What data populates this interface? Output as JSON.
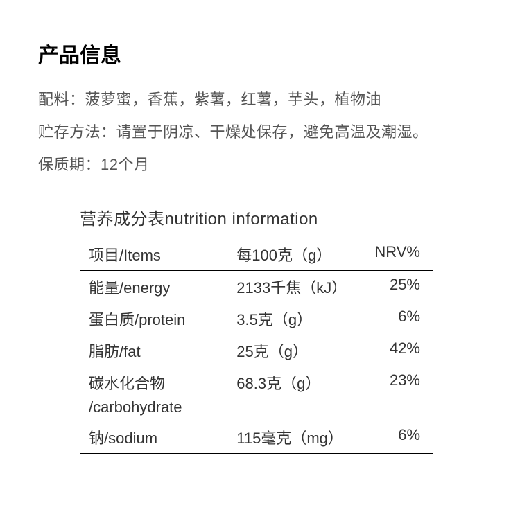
{
  "title": "产品信息",
  "info": {
    "ingredients": "配料：菠萝蜜，香蕉，紫薯，红薯，芋头，植物油",
    "storage": "贮存方法：请置于阴凉、干燥处保存，避免高温及潮湿。",
    "shelf_life": "保质期：12个月"
  },
  "nutrition": {
    "title": "营养成分表nutrition information",
    "header": {
      "c1": "项目/Items",
      "c2": "每100克（g）",
      "c3": "NRV%"
    },
    "rows": [
      {
        "c1": "能量/energy",
        "c2": "2133千焦（kJ）",
        "c3": "25%"
      },
      {
        "c1": "蛋白质/protein",
        "c2": "3.5克（g）",
        "c3": "6%"
      },
      {
        "c1": "脂肪/fat",
        "c2": "25克（g）",
        "c3": "42%"
      },
      {
        "c1": "碳水化合物",
        "c1b": "/carbohydrate",
        "c2": "68.3克（g）",
        "c3": "23%"
      },
      {
        "c1": "钠/sodium",
        "c2": "115毫克（mg）",
        "c3": "6%"
      }
    ]
  },
  "style": {
    "bg": "#ffffff",
    "title_color": "#000000",
    "text_color": "#555555",
    "table_border": "#000000",
    "title_fontsize": 30,
    "body_fontsize": 22,
    "table_title_fontsize": 24
  }
}
